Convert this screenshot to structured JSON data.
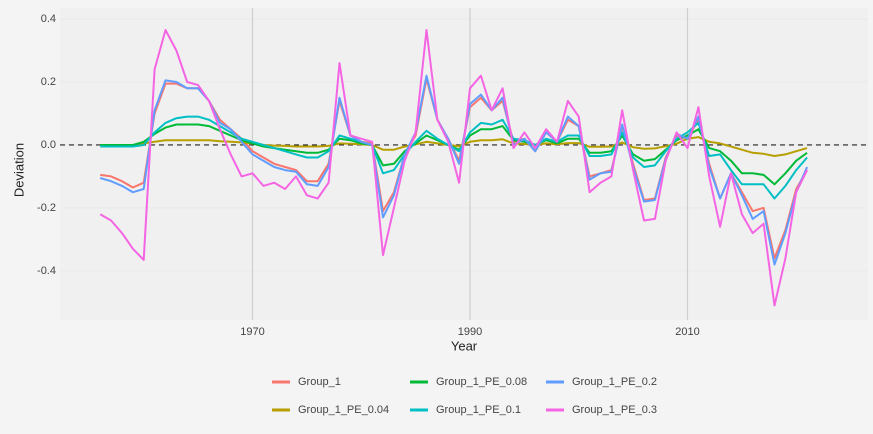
{
  "chart_data": {
    "type": "line",
    "x_label": "Year",
    "y_label": "Deviation",
    "x": [
      1956,
      1957,
      1958,
      1959,
      1960,
      1961,
      1962,
      1963,
      1964,
      1965,
      1966,
      1967,
      1968,
      1969,
      1970,
      1971,
      1972,
      1973,
      1974,
      1975,
      1976,
      1977,
      1978,
      1979,
      1980,
      1981,
      1982,
      1983,
      1984,
      1985,
      1986,
      1987,
      1988,
      1989,
      1990,
      1991,
      1992,
      1993,
      1994,
      1995,
      1996,
      1997,
      1998,
      1999,
      2000,
      2001,
      2002,
      2003,
      2004,
      2005,
      2006,
      2007,
      2008,
      2009,
      2010,
      2011,
      2012,
      2013,
      2014,
      2015,
      2016,
      2017,
      2018,
      2019,
      2020,
      2021
    ],
    "series": [
      {
        "name": "Group_1",
        "color": "#F8766D",
        "values": [
          -0.095,
          -0.1,
          -0.115,
          -0.135,
          -0.12,
          0.1,
          0.195,
          0.195,
          0.18,
          0.18,
          0.14,
          0.08,
          0.05,
          0.02,
          -0.02,
          -0.04,
          -0.06,
          -0.07,
          -0.08,
          -0.115,
          -0.115,
          -0.06,
          0.14,
          0.03,
          0.01,
          0.005,
          -0.21,
          -0.15,
          -0.03,
          0.03,
          0.21,
          0.08,
          0.02,
          -0.05,
          0.12,
          0.15,
          0.11,
          0.14,
          0.01,
          0.02,
          -0.02,
          0.04,
          0.01,
          0.08,
          0.06,
          -0.1,
          -0.09,
          -0.08,
          0.06,
          -0.06,
          -0.175,
          -0.17,
          -0.04,
          0.03,
          0.02,
          0.08,
          -0.06,
          -0.17,
          -0.09,
          -0.15,
          -0.21,
          -0.2,
          -0.36,
          -0.27,
          -0.14,
          -0.08
        ]
      },
      {
        "name": "Group_1_PE_0.04",
        "color": "#B79F00",
        "values": [
          0,
          0,
          0,
          0,
          0.005,
          0.01,
          0.015,
          0.015,
          0.015,
          0.015,
          0.015,
          0.012,
          0.01,
          0.008,
          0.005,
          0,
          -0.002,
          -0.003,
          -0.005,
          -0.005,
          -0.005,
          -0.003,
          0.005,
          0.004,
          0.002,
          0,
          -0.015,
          -0.015,
          -0.005,
          0.002,
          0.01,
          0.005,
          0,
          -0.004,
          0.01,
          0.015,
          0.015,
          0.018,
          0.005,
          0.003,
          0,
          0.005,
          0.002,
          0.006,
          0.006,
          -0.006,
          -0.006,
          -0.005,
          0.008,
          -0.007,
          -0.012,
          -0.011,
          -0.004,
          0.004,
          0.02,
          0.025,
          0.01,
          0.005,
          -0.005,
          -0.015,
          -0.025,
          -0.028,
          -0.035,
          -0.03,
          -0.02,
          -0.01
        ]
      },
      {
        "name": "Group_1_PE_0.08",
        "color": "#00BA38",
        "values": [
          0,
          0,
          0,
          0,
          0.01,
          0.035,
          0.055,
          0.065,
          0.065,
          0.065,
          0.06,
          0.045,
          0.03,
          0.015,
          0.005,
          -0.005,
          -0.01,
          -0.015,
          -0.02,
          -0.025,
          -0.025,
          -0.015,
          0.02,
          0.015,
          0.005,
          0,
          -0.065,
          -0.06,
          -0.02,
          0.005,
          0.03,
          0.015,
          0,
          -0.015,
          0.03,
          0.05,
          0.05,
          0.06,
          0.015,
          0.01,
          0,
          0.015,
          0.005,
          0.02,
          0.02,
          -0.025,
          -0.025,
          -0.02,
          0.03,
          -0.03,
          -0.05,
          -0.045,
          -0.015,
          0.015,
          0.03,
          0.05,
          -0.01,
          -0.02,
          -0.05,
          -0.09,
          -0.09,
          -0.095,
          -0.125,
          -0.09,
          -0.05,
          -0.025
        ]
      },
      {
        "name": "Group_1_PE_0.1",
        "color": "#00BFC4",
        "values": [
          -0.005,
          -0.005,
          -0.005,
          -0.005,
          0,
          0.04,
          0.07,
          0.085,
          0.09,
          0.09,
          0.08,
          0.06,
          0.04,
          0.02,
          0.01,
          0,
          -0.01,
          -0.02,
          -0.03,
          -0.04,
          -0.04,
          -0.02,
          0.03,
          0.02,
          0.01,
          0,
          -0.09,
          -0.08,
          -0.03,
          0.01,
          0.045,
          0.02,
          0,
          -0.02,
          0.04,
          0.07,
          0.065,
          0.08,
          0.02,
          0.015,
          0,
          0.02,
          0.01,
          0.03,
          0.03,
          -0.035,
          -0.035,
          -0.03,
          0.04,
          -0.04,
          -0.07,
          -0.065,
          -0.02,
          0.02,
          0.04,
          0.07,
          -0.035,
          -0.03,
          -0.08,
          -0.125,
          -0.125,
          -0.125,
          -0.17,
          -0.13,
          -0.08,
          -0.04
        ]
      },
      {
        "name": "Group_1_PE_0.2",
        "color": "#619CFF",
        "values": [
          -0.105,
          -0.115,
          -0.13,
          -0.15,
          -0.14,
          0.11,
          0.205,
          0.2,
          0.18,
          0.18,
          0.14,
          0.07,
          0.05,
          0.01,
          -0.03,
          -0.05,
          -0.07,
          -0.08,
          -0.085,
          -0.125,
          -0.13,
          -0.07,
          0.15,
          0.03,
          0.01,
          0,
          -0.23,
          -0.16,
          -0.03,
          0.04,
          0.22,
          0.08,
          0.02,
          -0.06,
          0.13,
          0.16,
          0.11,
          0.15,
          0,
          0.02,
          -0.02,
          0.04,
          0.01,
          0.09,
          0.06,
          -0.11,
          -0.09,
          -0.085,
          0.065,
          -0.07,
          -0.18,
          -0.175,
          -0.045,
          0.035,
          0.02,
          0.09,
          -0.07,
          -0.17,
          -0.09,
          -0.16,
          -0.235,
          -0.21,
          -0.38,
          -0.28,
          -0.15,
          -0.07
        ]
      },
      {
        "name": "Group_1_PE_0.3",
        "color": "#F564E3",
        "values": [
          -0.22,
          -0.24,
          -0.28,
          -0.33,
          -0.365,
          0.24,
          0.365,
          0.3,
          0.2,
          0.19,
          0.14,
          0.05,
          -0.03,
          -0.1,
          -0.09,
          -0.13,
          -0.12,
          -0.14,
          -0.1,
          -0.16,
          -0.17,
          -0.12,
          0.26,
          0.03,
          0.02,
          0.01,
          -0.35,
          -0.2,
          -0.05,
          0.04,
          0.365,
          0.08,
          0.01,
          -0.12,
          0.18,
          0.22,
          0.11,
          0.18,
          -0.01,
          0.04,
          -0.01,
          0.05,
          0.01,
          0.14,
          0.09,
          -0.15,
          -0.12,
          -0.1,
          0.11,
          -0.08,
          -0.24,
          -0.235,
          -0.05,
          0.04,
          -0.01,
          0.12,
          -0.1,
          -0.26,
          -0.09,
          -0.22,
          -0.28,
          -0.25,
          -0.51,
          -0.36,
          -0.15,
          -0.08
        ]
      }
    ],
    "xlim": [
      1952.3,
      2026.6
    ],
    "xticks": [
      1970,
      1990,
      2010
    ],
    "ylim": [
      -0.556,
      0.435
    ],
    "yticks": [
      0.4,
      0.2,
      {
        "value": 0,
        "label": "0.0"
      },
      -0.2,
      -0.4
    ],
    "reference_line": 0,
    "grid": true,
    "legend": "bottom"
  }
}
